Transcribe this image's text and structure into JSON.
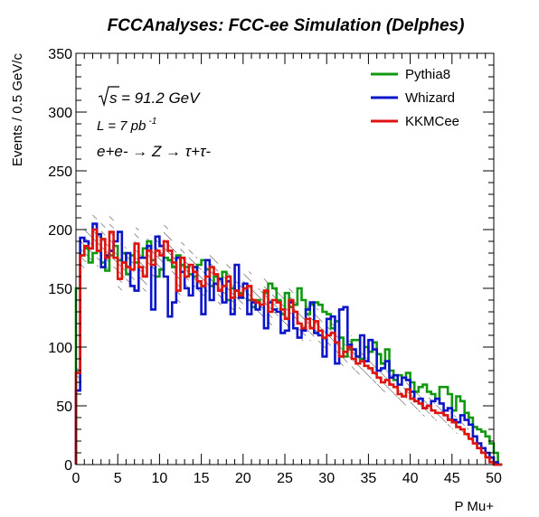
{
  "chart_data": {
    "type": "line",
    "title": "FCCAnalyses: FCC-ee Simulation (Delphes)",
    "xlabel": "P Mu+",
    "ylabel": "Events / 0.5 GeV/c",
    "xlim": [
      0,
      50
    ],
    "ylim": [
      0,
      350
    ],
    "x_ticks": [
      "0",
      "5",
      "10",
      "15",
      "20",
      "25",
      "30",
      "35",
      "40",
      "45",
      "50"
    ],
    "y_ticks": [
      "0",
      "50",
      "100",
      "150",
      "200",
      "250",
      "300",
      "350"
    ],
    "bin_width": 0.5,
    "legend_position": "top-right",
    "annotations": {
      "sqrt_s": "s",
      "sqrt_s_value": "= 91.2 GeV",
      "lumi_prefix": "L = 7 pb",
      "lumi_exp": "-1",
      "process": "e+e- → Z → τ+τ-"
    },
    "colors": {
      "pythia": "#109910",
      "whizard": "#0a14c8",
      "kkmc": "#e0120e",
      "axis": "#000000",
      "hatch": "#000000"
    },
    "series": [
      {
        "name": "Pythia8",
        "values": [
          150,
          178,
          184,
          172,
          180,
          196,
          172,
          165,
          178,
          186,
          174,
          180,
          162,
          178,
          172,
          176,
          184,
          190,
          174,
          160,
          166,
          176,
          174,
          168,
          178,
          170,
          168,
          162,
          160,
          170,
          174,
          166,
          152,
          160,
          158,
          164,
          140,
          150,
          148,
          146,
          150,
          140,
          134,
          140,
          136,
          146,
          154,
          150,
          140,
          128,
          146,
          134,
          136,
          150,
          140,
          128,
          136,
          138,
          136,
          130,
          128,
          116,
          122,
          108,
          92,
          98,
          106,
          106,
          90,
          100,
          96,
          104,
          94,
          86,
          98,
          80,
          72,
          76,
          74,
          78,
          70,
          62,
          66,
          68,
          62,
          60,
          56,
          66,
          66,
          60,
          46,
          58,
          54,
          44,
          40,
          32,
          30,
          28,
          24,
          18,
          10,
          0
        ]
      },
      {
        "name": "Whizard",
        "values": [
          63,
          193,
          190,
          184,
          205,
          196,
          168,
          178,
          182,
          190,
          198,
          172,
          180,
          152,
          148,
          176,
          176,
          186,
          132,
          194,
          186,
          160,
          126,
          138,
          176,
          164,
          150,
          144,
          168,
          150,
          128,
          174,
          140,
          154,
          158,
          138,
          156,
          128,
          170,
          142,
          154,
          128,
          138,
          132,
          136,
          116,
          138,
          132,
          130,
          112,
          114,
          138,
          116,
          108,
          114,
          132,
          138,
          112,
          110,
          92,
          124,
          126,
          86,
          132,
          134,
          102,
          98,
          92,
          110,
          88,
          106,
          98,
          80,
          82,
          88,
          74,
          76,
          68,
          74,
          72,
          62,
          54,
          56,
          48,
          50,
          54,
          56,
          52,
          46,
          48,
          38,
          36,
          42,
          38,
          34,
          24,
          18,
          14,
          10,
          6,
          2,
          0
        ]
      },
      {
        "name": "KKMCee",
        "values": [
          78,
          178,
          186,
          184,
          200,
          182,
          192,
          176,
          198,
          176,
          158,
          172,
          168,
          166,
          188,
          168,
          160,
          182,
          170,
          182,
          178,
          190,
          182,
          172,
          148,
          176,
          160,
          170,
          164,
          156,
          152,
          160,
          168,
          162,
          148,
          152,
          160,
          142,
          148,
          144,
          150,
          152,
          140,
          138,
          136,
          148,
          130,
          140,
          138,
          132,
          124,
          140,
          130,
          120,
          116,
          124,
          116,
          122,
          114,
          108,
          110,
          112,
          104,
          92,
          96,
          100,
          90,
          86,
          88,
          84,
          82,
          78,
          74,
          70,
          72,
          68,
          66,
          60,
          58,
          64,
          56,
          54,
          52,
          48,
          50,
          46,
          44,
          44,
          42,
          38,
          36,
          32,
          30,
          26,
          22,
          18,
          14,
          10,
          6,
          2,
          0,
          0
        ]
      }
    ]
  }
}
